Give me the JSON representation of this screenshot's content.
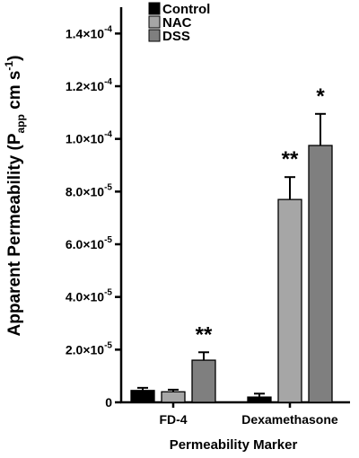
{
  "chart_data": {
    "type": "bar",
    "categories": [
      "FD-4",
      "Dexamethasone"
    ],
    "series": [
      {
        "name": "Control",
        "color": "#000000",
        "values": [
          4.5e-06,
          2e-06
        ],
        "errors": [
          1e-06,
          1.3e-06
        ],
        "significance": [
          "",
          ""
        ]
      },
      {
        "name": "NAC",
        "color": "#a6a6a6",
        "values": [
          4e-06,
          7.7e-05
        ],
        "errors": [
          8e-07,
          8.5e-06
        ],
        "significance": [
          "",
          "**"
        ]
      },
      {
        "name": "DSS",
        "color": "#7f7f7f",
        "values": [
          1.6e-05,
          9.75e-05
        ],
        "errors": [
          3e-06,
          1.2e-05
        ],
        "significance": [
          "**",
          "*"
        ]
      }
    ],
    "ylim": [
      0,
      0.00015
    ],
    "yticks": [
      {
        "value": 0,
        "label": "0"
      },
      {
        "value": 2e-05,
        "mant": "2.0",
        "exp": "-5"
      },
      {
        "value": 4e-05,
        "mant": "4.0",
        "exp": "-5"
      },
      {
        "value": 6e-05,
        "mant": "6.0",
        "exp": "-5"
      },
      {
        "value": 8e-05,
        "mant": "8.0",
        "exp": "-5"
      },
      {
        "value": 0.0001,
        "mant": "1.0",
        "exp": "-4"
      },
      {
        "value": 0.00012,
        "mant": "1.2",
        "exp": "-4"
      },
      {
        "value": 0.00014,
        "mant": "1.4",
        "exp": "-4"
      }
    ],
    "times_symbol": "×10",
    "ylabel": {
      "main": "Apparent Permeability (P",
      "sub": "app",
      "unit": " cm s",
      "sup": "-1",
      "close": ")"
    },
    "xlabel": "Permeability Marker",
    "legend_position": "top-left",
    "grid": false
  }
}
